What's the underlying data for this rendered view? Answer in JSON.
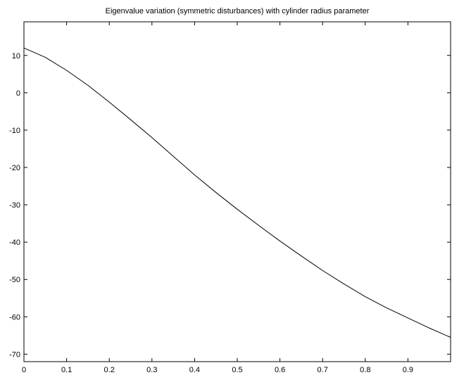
{
  "chart_data": {
    "type": "line",
    "title": "Eigenvalue variation (symmetric disturbances) with cylinder radius parameter",
    "xlabel": "",
    "ylabel": "",
    "xlim": [
      0,
      1
    ],
    "ylim": [
      -72,
      19
    ],
    "grid": false,
    "xticks": [
      0,
      0.1,
      0.2,
      0.3,
      0.4,
      0.5,
      0.6,
      0.7,
      0.8,
      0.9
    ],
    "xtick_labels": [
      "0",
      "0.1",
      "0.2",
      "0.3",
      "0.4",
      "0.5",
      "0.6",
      "0.7",
      "0.8",
      "0.9"
    ],
    "yticks": [
      10,
      0,
      -10,
      -20,
      -30,
      -40,
      -50,
      -60,
      -70
    ],
    "ytick_labels": [
      "10",
      "0",
      "-10",
      "-20",
      "-30",
      "-40",
      "-50",
      "-60",
      "-70"
    ],
    "series": [
      {
        "x": [
          0,
          0.05,
          0.1,
          0.15,
          0.2,
          0.25,
          0.3,
          0.35,
          0.4,
          0.45,
          0.5,
          0.55,
          0.6,
          0.65,
          0.7,
          0.75,
          0.8,
          0.85,
          0.9,
          0.95,
          1.0
        ],
        "y": [
          12,
          9.5,
          6,
          2,
          -2.5,
          -7.2,
          -12,
          -17,
          -22,
          -26.7,
          -31.2,
          -35.5,
          -39.7,
          -43.7,
          -47.6,
          -51.2,
          -54.6,
          -57.6,
          -60.3,
          -63,
          -65.5
        ]
      }
    ]
  }
}
